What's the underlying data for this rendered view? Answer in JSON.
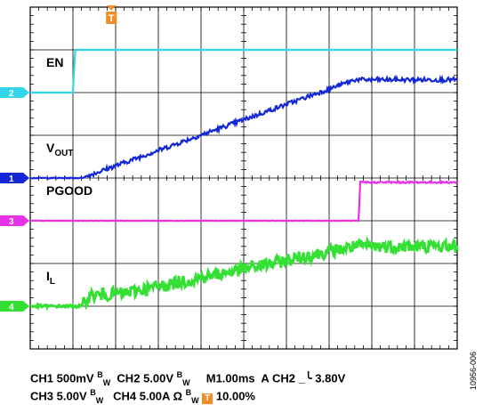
{
  "chart_data": {
    "type": "line",
    "subtype": "oscilloscope-capture",
    "grid": {
      "divisions_x": 10,
      "divisions_y": 8
    },
    "time": {
      "unit": "ms",
      "per_div": 1.0,
      "range": [
        0,
        10
      ]
    },
    "trigger_marker_label": "T",
    "series": [
      {
        "name": "EN",
        "channel": "2",
        "color": "#33d6e8",
        "scale": "5.00V/div",
        "label_parts": [
          "EN",
          ""
        ],
        "ground_div": 2.0,
        "x": [
          0,
          1.0,
          1.05,
          10
        ],
        "values": [
          0,
          0,
          1.0,
          1.0
        ],
        "unit": "div above marker",
        "noise": 0.0
      },
      {
        "name": "VOUT",
        "channel": "1",
        "color": "#1428d8",
        "scale": "500mV/div",
        "label_parts": [
          "V",
          "OUT"
        ],
        "ground_div": 4.0,
        "x": [
          0,
          1.2,
          7.6,
          10
        ],
        "values": [
          0,
          0,
          2.3,
          2.3
        ],
        "unit": "div above marker",
        "noise": 0.05
      },
      {
        "name": "PGOOD",
        "channel": "3",
        "color": "#e632e6",
        "scale": "5.00V/div",
        "label_parts": [
          "PGOOD",
          ""
        ],
        "ground_div": 5.0,
        "x": [
          0,
          7.7,
          7.72,
          10
        ],
        "values": [
          0,
          0,
          0.9,
          0.9
        ],
        "unit": "div above marker",
        "noise": 0.02
      },
      {
        "name": "IL",
        "channel": "4",
        "color": "#33e033",
        "scale": "5.00A/div",
        "label_parts": [
          "I",
          "L"
        ],
        "ground_div": 7.0,
        "x": [
          0,
          1.2,
          1.4,
          2.2,
          7.6,
          10
        ],
        "values": [
          0,
          0,
          0.25,
          0.3,
          1.4,
          1.4
        ],
        "unit": "div above marker",
        "noise": 0.15
      }
    ]
  },
  "status": {
    "line1": [
      "CH1",
      "500mV",
      "B",
      "W",
      "CH2",
      "5.00V",
      "B",
      "W",
      "M1.00ms",
      "A",
      "CH2",
      "3.80V"
    ],
    "line2": [
      "CH3",
      "5.00V",
      "B",
      "W",
      "CH4",
      "5.00A",
      "Ω",
      "B",
      "W",
      "T",
      "10.00%"
    ]
  },
  "figure_id": "10956-006"
}
